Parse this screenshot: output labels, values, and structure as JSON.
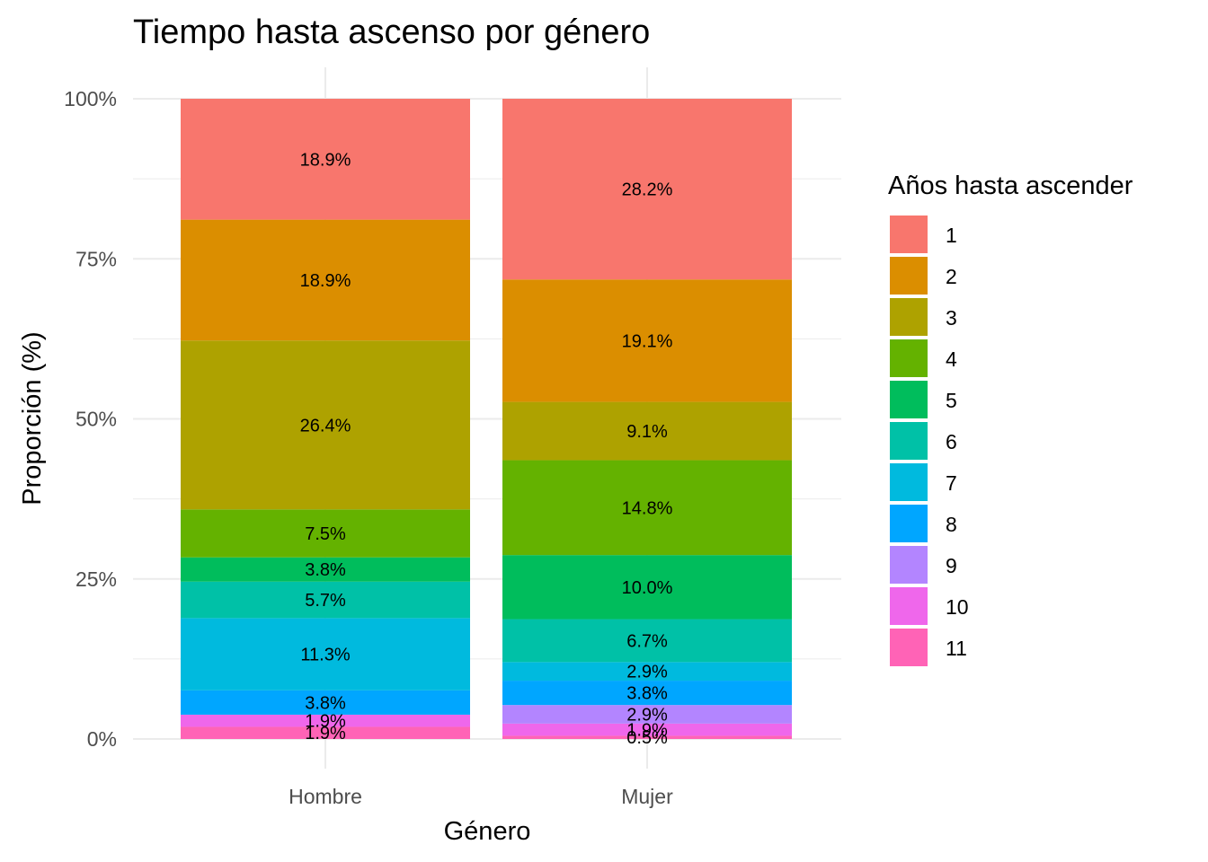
{
  "chart_data": {
    "type": "bar",
    "stacked": true,
    "title": "Tiempo hasta ascenso por género",
    "xlabel": "Género",
    "ylabel": "Proporción (%)",
    "categories": [
      "Hombre",
      "Mujer"
    ],
    "y_ticks": [
      "0%",
      "25%",
      "50%",
      "75%",
      "100%"
    ],
    "ylim": [
      0,
      100
    ],
    "legend": {
      "title": "Años hasta ascender",
      "position": "right"
    },
    "grid": true,
    "series": [
      {
        "name": "1",
        "color": "#F8766D",
        "values": [
          18.9,
          28.2
        ],
        "labels": [
          "18.9%",
          "28.2%"
        ]
      },
      {
        "name": "2",
        "color": "#DB8E00",
        "values": [
          18.9,
          19.1
        ],
        "labels": [
          "18.9%",
          "19.1%"
        ]
      },
      {
        "name": "3",
        "color": "#AEA200",
        "values": [
          26.4,
          9.1
        ],
        "labels": [
          "26.4%",
          "9.1%"
        ]
      },
      {
        "name": "4",
        "color": "#64B200",
        "values": [
          7.5,
          14.8
        ],
        "labels": [
          "7.5%",
          "14.8%"
        ]
      },
      {
        "name": "5",
        "color": "#00BD5C",
        "values": [
          3.8,
          10.0
        ],
        "labels": [
          "3.8%",
          "10.0%"
        ]
      },
      {
        "name": "6",
        "color": "#00C1A7",
        "values": [
          5.7,
          6.7
        ],
        "labels": [
          "5.7%",
          "6.7%"
        ]
      },
      {
        "name": "7",
        "color": "#00BADE",
        "values": [
          11.3,
          2.9
        ],
        "labels": [
          "11.3%",
          "2.9%"
        ]
      },
      {
        "name": "8",
        "color": "#00A6FF",
        "values": [
          3.8,
          3.8
        ],
        "labels": [
          "3.8%",
          "3.8%"
        ]
      },
      {
        "name": "9",
        "color": "#B385FF",
        "values": [
          0,
          2.9
        ],
        "labels": [
          "",
          "2.9%"
        ]
      },
      {
        "name": "10",
        "color": "#EF67EB",
        "values": [
          1.9,
          1.9
        ],
        "labels": [
          "1.9%",
          "1.9%"
        ]
      },
      {
        "name": "11",
        "color": "#FF63B6",
        "values": [
          1.9,
          0.5
        ],
        "labels": [
          "1.9%",
          "0.5%"
        ]
      }
    ]
  }
}
